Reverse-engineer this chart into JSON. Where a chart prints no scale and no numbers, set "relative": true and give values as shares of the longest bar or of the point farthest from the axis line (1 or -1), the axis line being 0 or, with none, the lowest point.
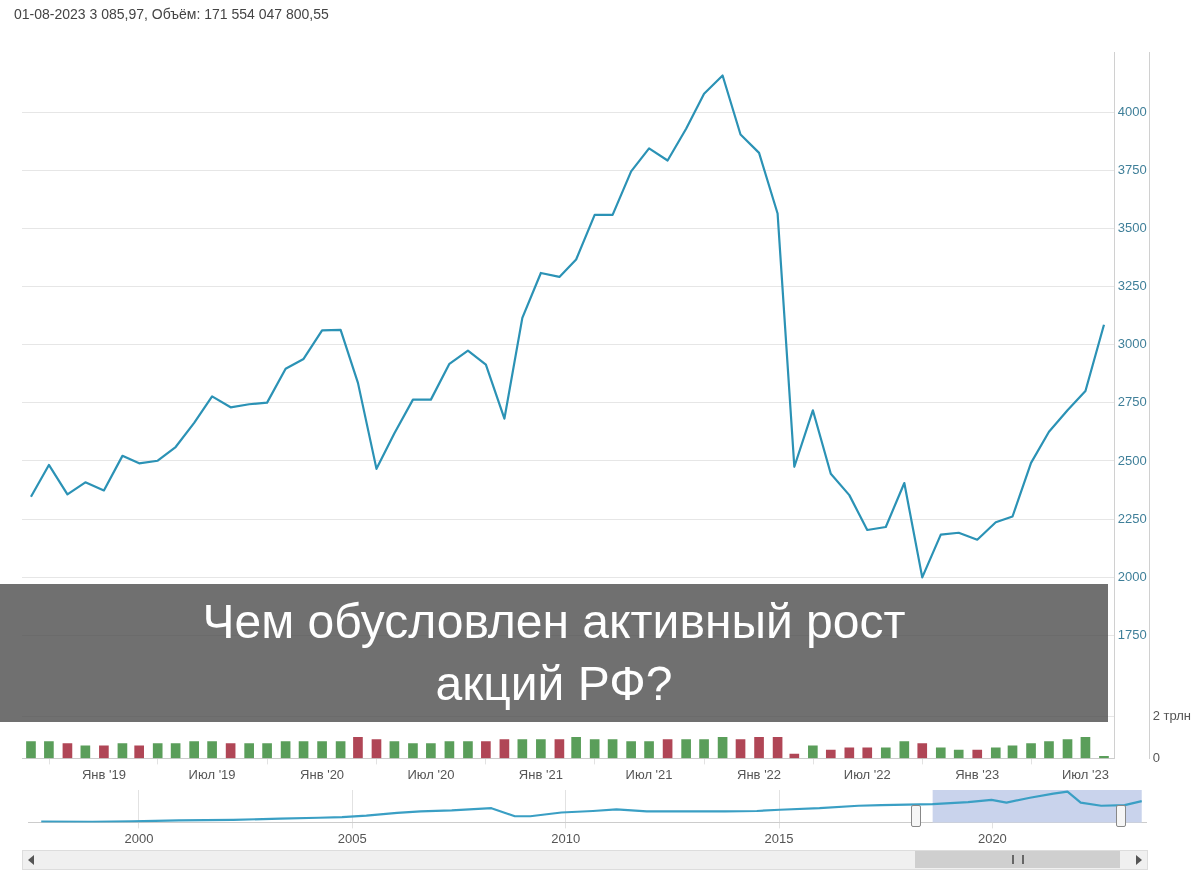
{
  "chart_data": [
    {
      "type": "line",
      "title": "Чем обусловлен активный рост акций РФ?",
      "subtitle": "01-08-2023 3 085,97, Объём: 171 554 047 800,55",
      "x": [
        "2018-09-01",
        "2018-10-01",
        "2018-11-01",
        "2018-12-01",
        "2019-01-01",
        "2019-02-01",
        "2019-03-01",
        "2019-04-01",
        "2019-05-01",
        "2019-06-01",
        "2019-07-01",
        "2019-08-01",
        "2019-09-01",
        "2019-10-01",
        "2019-11-01",
        "2019-12-01",
        "2020-01-01",
        "2020-02-01",
        "2020-03-01",
        "2020-04-01",
        "2020-05-01",
        "2020-06-01",
        "2020-07-01",
        "2020-08-01",
        "2020-09-01",
        "2020-10-01",
        "2020-11-01",
        "2020-12-01",
        "2021-01-01",
        "2021-02-01",
        "2021-03-01",
        "2021-04-01",
        "2021-05-01",
        "2021-06-01",
        "2021-07-01",
        "2021-08-01",
        "2021-09-01",
        "2021-10-01",
        "2021-11-01",
        "2021-12-01",
        "2022-01-01",
        "2022-02-01",
        "2022-03-01",
        "2022-04-01",
        "2022-05-01",
        "2022-06-01",
        "2022-07-01",
        "2022-08-01",
        "2022-09-01",
        "2022-10-01",
        "2022-11-01",
        "2022-12-01",
        "2023-01-01",
        "2023-02-01",
        "2023-03-01",
        "2023-04-01",
        "2023-05-01",
        "2023-06-01",
        "2023-07-01",
        "2023-08-01"
      ],
      "series": [
        {
          "type": "line",
          "color": "#2b92b5",
          "values": [
            2346,
            2483,
            2356,
            2408,
            2373,
            2522,
            2490,
            2501,
            2560,
            2664,
            2778,
            2731,
            2744,
            2751,
            2897,
            2939,
            3062,
            3064,
            2836,
            2466,
            2619,
            2764,
            2764,
            2918,
            2975,
            2915,
            2682,
            3116,
            3309,
            3292,
            3367,
            3559,
            3559,
            3746,
            3845,
            3793,
            3930,
            4080,
            4159,
            3905,
            3826,
            3565,
            2475,
            2718,
            2445,
            2353,
            2203,
            2216,
            2405,
            1999,
            2183,
            2191,
            2161,
            2236,
            2261,
            2492,
            2626,
            2718,
            2801,
            3086
          ]
        },
        {
          "type": "bar",
          "axis": "y2",
          "colors": [
            "#5a9e5a",
            "#5a9e5a",
            "#b04656",
            "#5a9e5a",
            "#b04656",
            "#5a9e5a",
            "#b04656",
            "#5a9e5a",
            "#5a9e5a",
            "#5a9e5a",
            "#5a9e5a",
            "#b04656",
            "#5a9e5a",
            "#5a9e5a",
            "#5a9e5a",
            "#5a9e5a",
            "#5a9e5a",
            "#5a9e5a",
            "#b04656",
            "#b04656",
            "#5a9e5a",
            "#5a9e5a",
            "#5a9e5a",
            "#5a9e5a",
            "#5a9e5a",
            "#b04656",
            "#b04656",
            "#5a9e5a",
            "#5a9e5a",
            "#b04656",
            "#5a9e5a",
            "#5a9e5a",
            "#5a9e5a",
            "#5a9e5a",
            "#5a9e5a",
            "#b04656",
            "#5a9e5a",
            "#5a9e5a",
            "#5a9e5a",
            "#b04656",
            "#b04656",
            "#b04656",
            "#b04656",
            "#5a9e5a",
            "#b04656",
            "#b04656",
            "#b04656",
            "#5a9e5a",
            "#5a9e5a",
            "#b04656",
            "#5a9e5a",
            "#5a9e5a",
            "#b04656",
            "#5a9e5a",
            "#5a9e5a",
            "#5a9e5a",
            "#5a9e5a",
            "#5a9e5a",
            "#5a9e5a",
            "#5a9e5a"
          ],
          "values": [
            0.8,
            0.8,
            0.7,
            0.6,
            0.6,
            0.7,
            0.6,
            0.7,
            0.7,
            0.8,
            0.8,
            0.7,
            0.7,
            0.7,
            0.8,
            0.8,
            0.8,
            0.8,
            1.0,
            0.9,
            0.8,
            0.7,
            0.7,
            0.8,
            0.8,
            0.8,
            0.9,
            0.9,
            0.9,
            0.9,
            1.0,
            0.9,
            0.9,
            0.8,
            0.8,
            0.9,
            0.9,
            0.9,
            1.0,
            0.9,
            1.0,
            1.0,
            0.2,
            0.6,
            0.4,
            0.5,
            0.5,
            0.5,
            0.8,
            0.7,
            0.5,
            0.4,
            0.4,
            0.5,
            0.6,
            0.7,
            0.8,
            0.9,
            1.0,
            0.1
          ]
        }
      ],
      "xlim": [
        "2018-08-17",
        "2023-08-19"
      ],
      "xticks": [
        {
          "value": "2019-01-01",
          "label": "Янв '19"
        },
        {
          "value": "2019-07-01",
          "label": "Июл '19"
        },
        {
          "value": "2020-01-01",
          "label": "Янв '20"
        },
        {
          "value": "2020-07-01",
          "label": "Июл '20"
        },
        {
          "value": "2021-01-01",
          "label": "Янв '21"
        },
        {
          "value": "2021-07-01",
          "label": "Июл '21"
        },
        {
          "value": "2022-01-01",
          "label": "Янв '22"
        },
        {
          "value": "2022-07-01",
          "label": "Июл '22"
        },
        {
          "value": "2023-01-01",
          "label": "Янв '23"
        },
        {
          "value": "2023-07-01",
          "label": "Июл '23"
        }
      ],
      "ylim": [
        1220,
        4260
      ],
      "yticks": [
        1750,
        2000,
        2250,
        2500,
        2750,
        3000,
        3250,
        3500,
        3750,
        4000
      ],
      "y2lim": [
        0,
        33.6
      ],
      "y2ticks": [
        0,
        {
          "value": 2,
          "label": "2 трлн"
        }
      ],
      "grid": "y",
      "marker": "none"
    },
    {
      "type": "line",
      "relative": true,
      "series": [
        {
          "color": "#3a9fc4",
          "x": [
            1997.71,
            1998.9,
            1999.83,
            2000.93,
            2002.21,
            2003.31,
            2004.21,
            2004.76,
            2005.33,
            2006.05,
            2006.6,
            2007.33,
            2008.26,
            2008.81,
            2009.17,
            2009.9,
            2010.64,
            2011.19,
            2011.9,
            2012.83,
            2013.74,
            2014.48,
            2015.02,
            2015.95,
            2016.86,
            2017.4,
            2018.6,
            2019.43,
            2019.98,
            2020.33,
            2020.88,
            2021.43,
            2021.76,
            2022.07,
            2022.55,
            2023.1,
            2023.5
          ],
          "values": [
            0.025,
            0.017,
            0.034,
            0.068,
            0.085,
            0.12,
            0.15,
            0.17,
            0.22,
            0.31,
            0.36,
            0.39,
            0.46,
            0.2,
            0.2,
            0.32,
            0.37,
            0.42,
            0.36,
            0.36,
            0.36,
            0.37,
            0.41,
            0.46,
            0.54,
            0.56,
            0.59,
            0.66,
            0.73,
            0.64,
            0.8,
            0.93,
            1,
            0.64,
            0.54,
            0.56,
            0.69
          ]
        }
      ],
      "xlim": [
        1997.4,
        2023.6
      ],
      "xticks": [
        2000,
        2005,
        2010,
        2015,
        2020
      ],
      "bands": [
        {
          "axis": "x",
          "from": 2018.6,
          "to": 2023.5,
          "color": "#c9d3ec"
        }
      ],
      "grid": "x",
      "marker": "none"
    }
  ]
}
